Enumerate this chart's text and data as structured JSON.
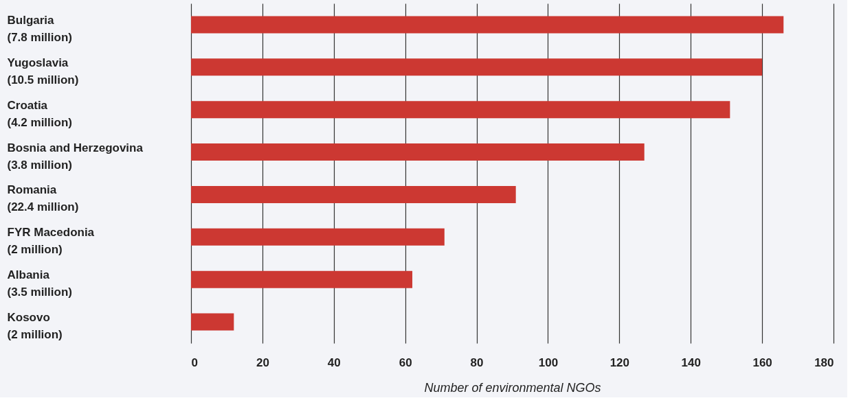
{
  "chart_data": {
    "type": "bar",
    "orientation": "horizontal",
    "xlabel": "Number of environmental NGOs",
    "categories": [
      "Bulgaria\n(7.8 million)",
      "Yugoslavia\n(10.5 million)",
      "Croatia\n(4.2 million)",
      "Bosnia and Herzegovina\n(3.8 million)",
      "Romania\n(22.4 million)",
      "FYR Macedonia\n(2 million)",
      "Albania\n(3.5 million)",
      "Kosovo\n(2 million)"
    ],
    "values": [
      166,
      160,
      151,
      127,
      91,
      71,
      62,
      12
    ],
    "color": "#cc3832",
    "xlim": [
      0,
      180
    ],
    "xticks": [
      0,
      20,
      40,
      60,
      80,
      100,
      120,
      140,
      160,
      180
    ],
    "grid": "x"
  }
}
